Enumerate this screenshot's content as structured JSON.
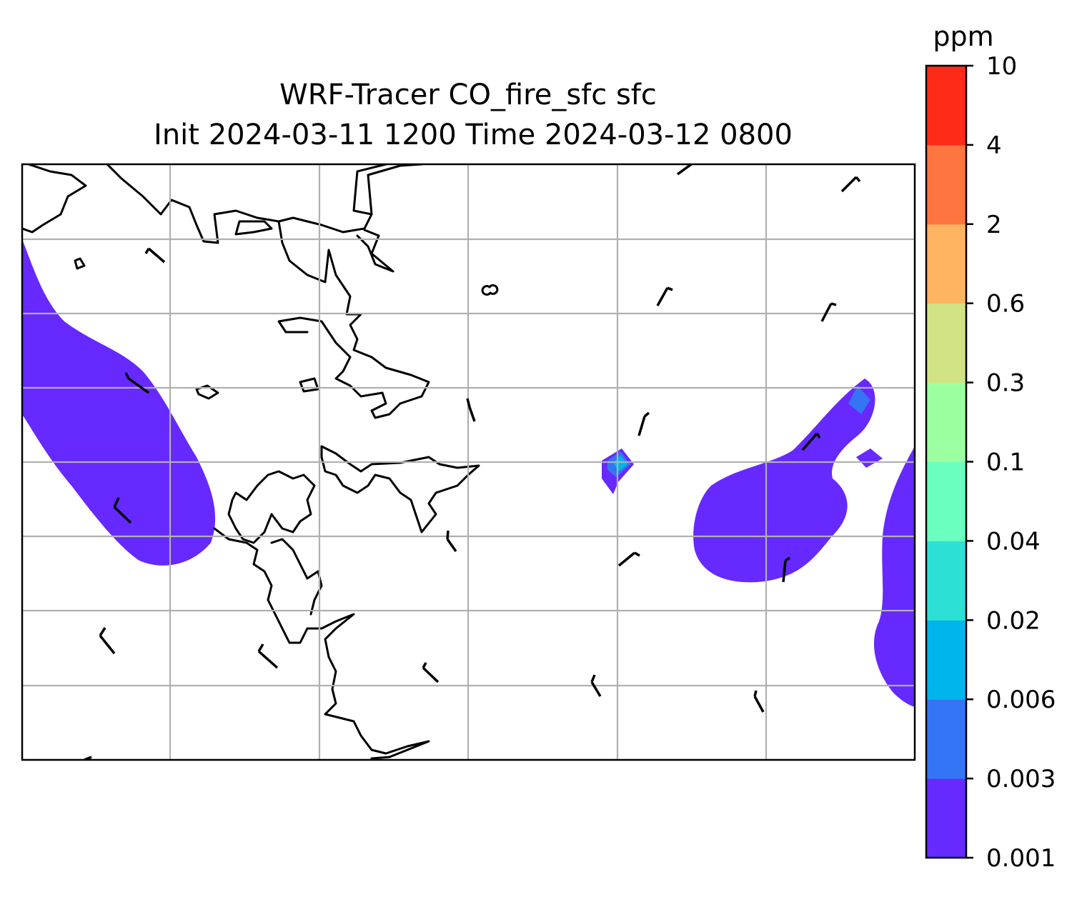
{
  "title": {
    "line1": "WRF-Tracer CO_fire_sfc sfc",
    "line2": "Init 2024-03-11 1200 Time 2024-03-12 0800"
  },
  "colorbar": {
    "unit": "ppm",
    "levels": [
      "0.001",
      "0.003",
      "0.006",
      "0.02",
      "0.04",
      "0.1",
      "0.3",
      "0.6",
      "2",
      "4",
      "10"
    ],
    "colors": [
      "#6629ff",
      "#3574f5",
      "#00b5eb",
      "#2de0d6",
      "#6bffbf",
      "#9cffa0",
      "#d1e385",
      "#ffb462",
      "#ff7540",
      "#ff2a17"
    ]
  },
  "map": {
    "gridlines": true,
    "coastline_color": "#000000"
  }
}
